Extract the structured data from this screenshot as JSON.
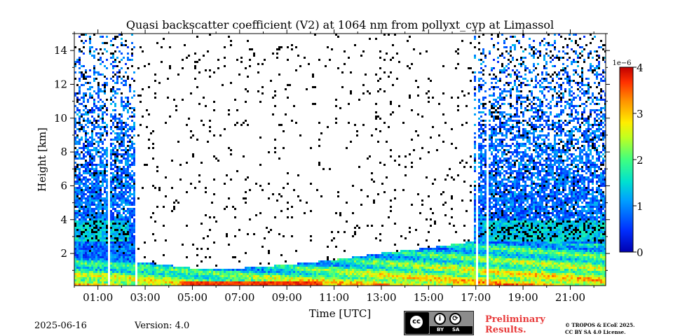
{
  "figure": {
    "date": "2025-06-16",
    "version": "Version: 4.0",
    "preliminary_line1": "Preliminary",
    "preliminary_line2": "Results.",
    "copyright_line1": "© TROPOS & ECoE 2025.",
    "copyright_line2": "CC BY SA 4.0 License.",
    "license_badge": {
      "main": "cc",
      "labels": [
        "BY",
        "SA"
      ]
    }
  },
  "chart_data": {
    "type": "heatmap",
    "title": "Quasi backscatter coefficient (V2) at 1064 nm from pollyxt_cyp at Limassol",
    "xlabel": "Time [UTC]",
    "ylabel": "Height [km]",
    "x_range_hours": [
      0.0,
      22.5
    ],
    "x_ticks": [
      "01:00",
      "03:00",
      "05:00",
      "07:00",
      "09:00",
      "11:00",
      "13:00",
      "15:00",
      "17:00",
      "19:00",
      "21:00"
    ],
    "x_tick_hours": [
      1,
      3,
      5,
      7,
      9,
      11,
      13,
      15,
      17,
      19,
      21
    ],
    "ylim": [
      0.1,
      15
    ],
    "y_ticks": [
      2,
      4,
      6,
      8,
      10,
      12,
      14
    ],
    "colorbar": {
      "multiplier": "1e−6",
      "ticks": [
        0,
        1,
        2,
        3,
        4
      ],
      "range": [
        0,
        4
      ],
      "colormap": "jet"
    },
    "data_gaps_hours": [
      [
        1.35,
        1.45
      ],
      [
        2.5,
        2.62
      ],
      [
        16.95,
        17.08
      ],
      [
        17.4,
        17.48
      ]
    ],
    "layers": [
      {
        "feature": "surface aerosol layer",
        "top_km_by_hour": [
          [
            0,
            1.8
          ],
          [
            2.5,
            1.6
          ],
          [
            5,
            1.2
          ],
          [
            7,
            1.2
          ],
          [
            9,
            1.4
          ],
          [
            11,
            1.7
          ],
          [
            13,
            2.1
          ],
          [
            15,
            2.4
          ],
          [
            17,
            2.8
          ],
          [
            19,
            2.8
          ],
          [
            22.5,
            2.6
          ]
        ]
      },
      {
        "feature": "upper aerosol/cloud layer",
        "bottom_km": 2.8,
        "top_km": 4.0,
        "hours": [
          [
            0,
            2.3
          ],
          [
            17.2,
            22.5
          ]
        ]
      },
      {
        "feature": "high backscatter near ground",
        "value_1e-6": 3.8,
        "hours": [
          4.5,
          10.5
        ],
        "top_km": 0.4
      }
    ]
  }
}
